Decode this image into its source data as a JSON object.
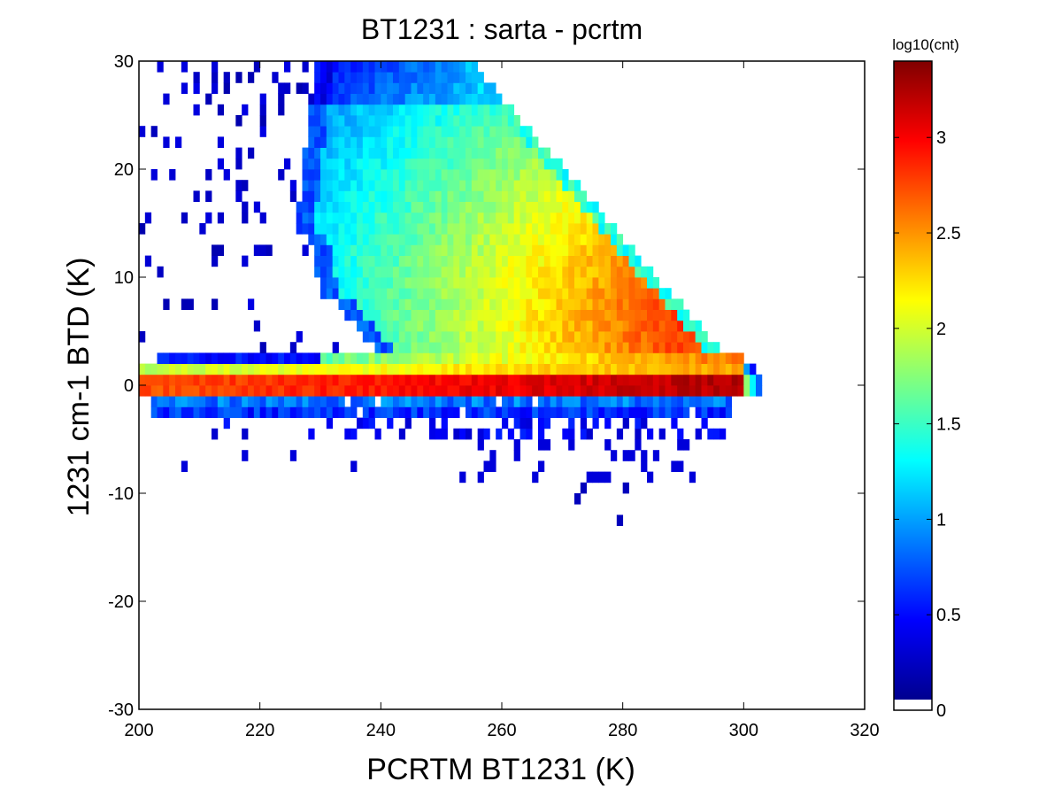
{
  "chart_data": {
    "type": "heatmap",
    "title": "BT1231 : sarta - pcrtm",
    "xlabel": "PCRTM BT1231 (K)",
    "ylabel": "1231 cm-1 BTD (K)",
    "xlim": [
      200,
      320
    ],
    "ylim": [
      -30,
      30
    ],
    "xticks": [
      200,
      220,
      240,
      260,
      280,
      300,
      320
    ],
    "yticks": [
      -30,
      -20,
      -10,
      0,
      10,
      20,
      30
    ],
    "grid": false,
    "bin_size": 1,
    "colorbar": {
      "title": "log10(cnt)",
      "range": [
        0,
        3.4
      ],
      "ticks": [
        0,
        0.5,
        1,
        1.5,
        2,
        2.5,
        3
      ],
      "colormap": "jet"
    },
    "description_of_distribution": {
      "dense_ridge_y": 0.5,
      "ridge_x_range": [
        200,
        303
      ],
      "upper_cloud_peak_x": 293,
      "upper_edge_line": "y ≈ 2 + (297 - x) * 0.65 for x in 255..297",
      "sparse_tail_max_y": 30,
      "negative_tail_min_y": -13
    }
  }
}
